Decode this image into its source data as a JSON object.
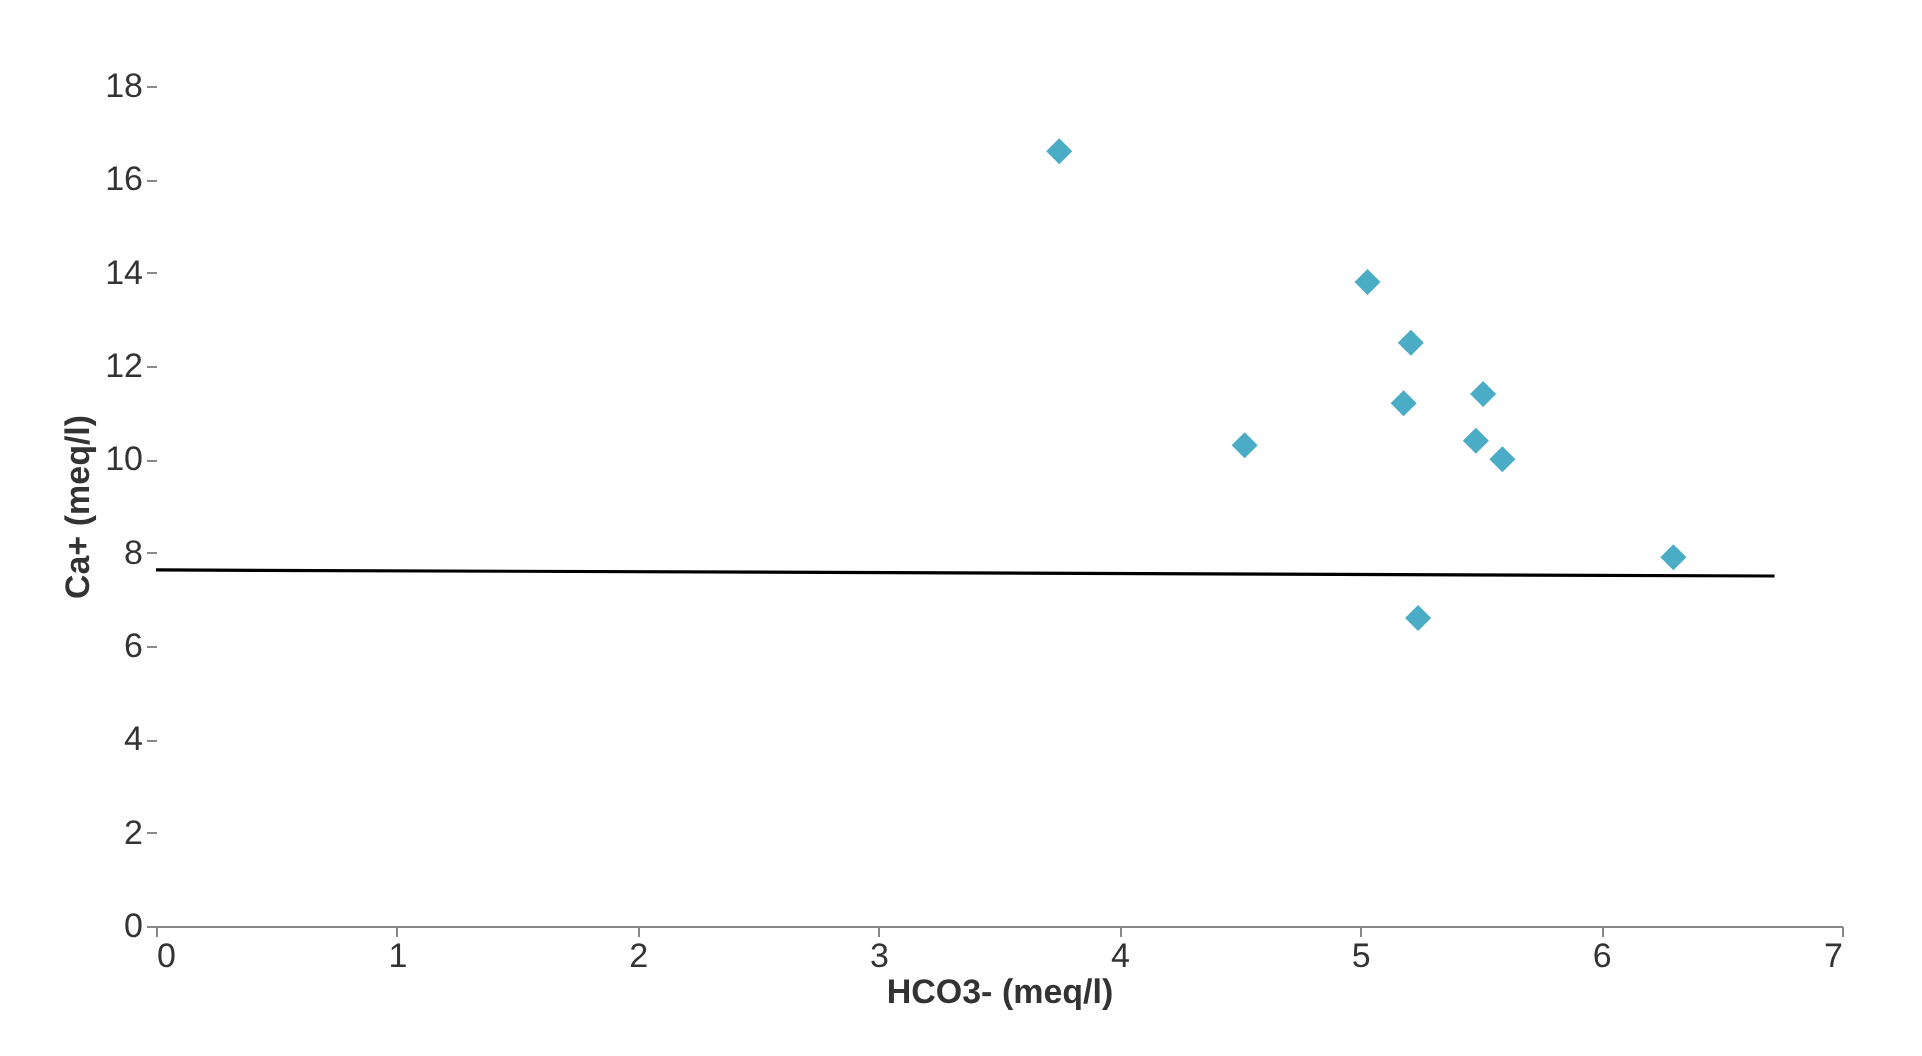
{
  "chart_data": {
    "type": "scatter",
    "xlabel": "HCO3- (meq/l)",
    "ylabel": "Ca+ (meq/l)",
    "xlim": [
      0,
      7
    ],
    "xticks": [
      0,
      1,
      2,
      3,
      4,
      5,
      6,
      7
    ],
    "ylim": [
      0,
      18
    ],
    "yticks": [
      0,
      2,
      4,
      6,
      8,
      10,
      12,
      14,
      16,
      18
    ],
    "grid": false,
    "marker": "diamond",
    "series": [
      {
        "color": "#4bacc6",
        "x": [
          3.75,
          4.52,
          5.03,
          5.21,
          5.18,
          5.51,
          5.48,
          5.59,
          5.24,
          6.3
        ],
        "values": [
          16.6,
          10.3,
          13.8,
          12.5,
          11.2,
          11.4,
          10.4,
          10.0,
          6.6,
          7.9
        ]
      },
      {
        "type": "line",
        "color": "#000000",
        "marker": "none",
        "line_style": "solid",
        "x": [
          0,
          6.72
        ],
        "values": [
          7.63,
          7.5
        ]
      }
    ]
  }
}
